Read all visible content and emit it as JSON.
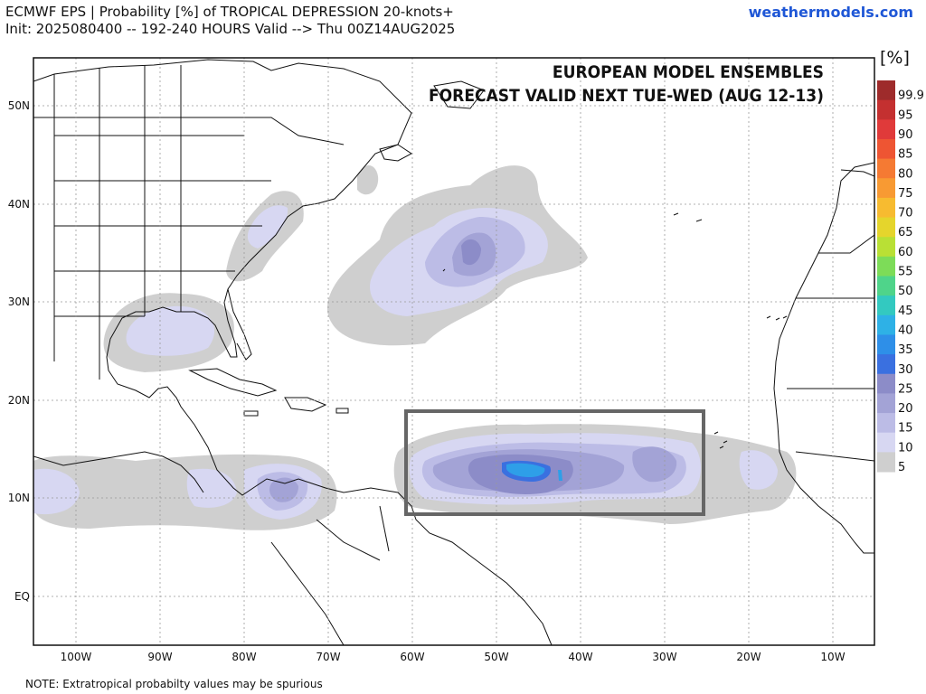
{
  "header": {
    "title_line1": "ECMWF EPS | Probability [%] of TROPICAL DEPRESSION 20-knots+",
    "title_line2": "Init: 2025080400 -- 192-240 HOURS Valid --> Thu 00Z14AUG2025",
    "site": "weathermodels.com"
  },
  "overlay": {
    "line1": "EUROPEAN MODEL ENSEMBLES",
    "line2": "FORECAST VALID NEXT TUE-WED (AUG 12-13)"
  },
  "axes": {
    "lat_labels": [
      "50N",
      "40N",
      "30N",
      "20N",
      "10N",
      "EQ"
    ],
    "lon_labels": [
      "100W",
      "90W",
      "80W",
      "70W",
      "60W",
      "50W",
      "40W",
      "30W",
      "20W",
      "10W"
    ]
  },
  "colorbar": {
    "unit": "[%]",
    "levels": [
      "99.9",
      "95",
      "90",
      "85",
      "80",
      "75",
      "70",
      "65",
      "60",
      "55",
      "50",
      "45",
      "40",
      "35",
      "30",
      "25",
      "20",
      "15",
      "10",
      "5"
    ],
    "colors": [
      "#9e2b2b",
      "#c43030",
      "#e03a3a",
      "#ee5533",
      "#f57a33",
      "#f89a33",
      "#f7bb30",
      "#e5d52c",
      "#b9e035",
      "#7ddc58",
      "#4fd48a",
      "#33c9c0",
      "#2eb1e6",
      "#2e8fe8",
      "#3a70e0",
      "#8c8cc8",
      "#a3a3d6",
      "#bcbce6",
      "#d7d7f2",
      "#cfcfcf"
    ]
  },
  "footer": {
    "note": "NOTE: Extratropical probabilty values may be spurious"
  }
}
